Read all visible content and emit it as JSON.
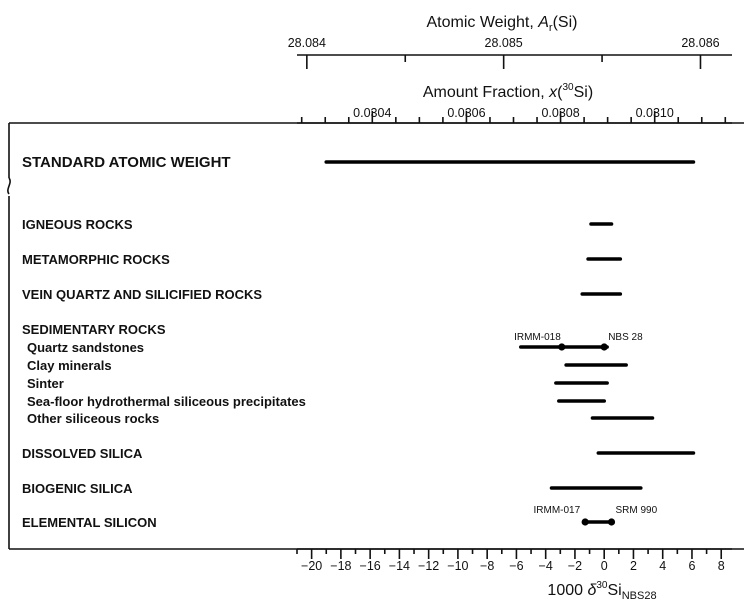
{
  "chart_data": {
    "type": "range",
    "top_axis_1": {
      "title_main": "Atomic Weight, ",
      "title_sym": "A",
      "title_sub": "r",
      "title_end": "(Si)",
      "range": [
        28.08395,
        28.08615
      ],
      "major_ticks": [
        28.084,
        28.085,
        28.086
      ],
      "tick_labels": [
        "28.084",
        "28.085",
        "28.086"
      ],
      "minor_step": 0.0005
    },
    "top_axis_2": {
      "title_main": "Amount Fraction, ",
      "title_sym": "x",
      "title_paren_open": "(",
      "title_sup": "30",
      "title_el": "Si",
      "title_end": ")",
      "range": [
        0.03024,
        0.03116
      ],
      "major_ticks": [
        0.0304,
        0.0306,
        0.0308,
        0.031
      ],
      "tick_labels": [
        "0.0304",
        "0.0306",
        "0.0308",
        "0.0310"
      ],
      "minor_step": 5e-05
    },
    "bottom_axis": {
      "title_pre": "1000 ",
      "title_delta": "δ",
      "title_sup": "30",
      "title_el": "Si",
      "title_sub": "NBS28",
      "range": [
        -21,
        8.6
      ],
      "major_ticks": [
        -20,
        -18,
        -16,
        -14,
        -12,
        -10,
        -8,
        -6,
        -4,
        -2,
        0,
        2,
        4,
        6,
        8
      ],
      "tick_labels": [
        "−20",
        "−18",
        "−16",
        "−14",
        "−12",
        "−10",
        "−8",
        "−6",
        "−4",
        "−2",
        "0",
        "2",
        "4",
        "6",
        "8"
      ],
      "minor_step": 1
    },
    "standard": {
      "label": "STANDARD ATOMIC WEIGHT",
      "min": -19,
      "max": 6.1
    },
    "categories": [
      {
        "label": "IGNEOUS ROCKS",
        "style": "group",
        "min": -0.9,
        "max": 0.5
      },
      {
        "label": "METAMORPHIC ROCKS",
        "style": "group",
        "min": -1.1,
        "max": 1.1
      },
      {
        "label": "VEIN QUARTZ AND SILICIFIED ROCKS",
        "style": "group",
        "min": -1.5,
        "max": 1.1
      },
      {
        "label": "SEDIMENTARY ROCKS",
        "style": "group"
      },
      {
        "label": "Quartz sandstones",
        "style": "sub",
        "min": -5.7,
        "max": 0.2
      },
      {
        "label": "Clay minerals",
        "style": "sub",
        "min": -2.6,
        "max": 1.5
      },
      {
        "label": "Sinter",
        "style": "sub",
        "min": -3.3,
        "max": 0.2
      },
      {
        "label": "Sea-floor hydrothermal siliceous precipitates",
        "style": "sub",
        "min": -3.1,
        "max": 0.0
      },
      {
        "label": "Other siliceous rocks",
        "style": "sub",
        "min": -0.8,
        "max": 3.3
      },
      {
        "label": "DISSOLVED SILICA",
        "style": "group",
        "min": -0.4,
        "max": 6.1
      },
      {
        "label": "BIOGENIC SILICA",
        "style": "group",
        "min": -3.6,
        "max": 2.5
      },
      {
        "label": "ELEMENTAL SILICON",
        "style": "group",
        "min": -1.3,
        "max": 0.5
      }
    ],
    "reference_materials": [
      {
        "label": "IRMM-018",
        "value": -2.9
      },
      {
        "label": "NBS 28",
        "value": 0.0
      },
      {
        "label": "IRMM-017",
        "value": -1.3
      },
      {
        "label": "SRM 990",
        "value": 0.5
      }
    ]
  }
}
